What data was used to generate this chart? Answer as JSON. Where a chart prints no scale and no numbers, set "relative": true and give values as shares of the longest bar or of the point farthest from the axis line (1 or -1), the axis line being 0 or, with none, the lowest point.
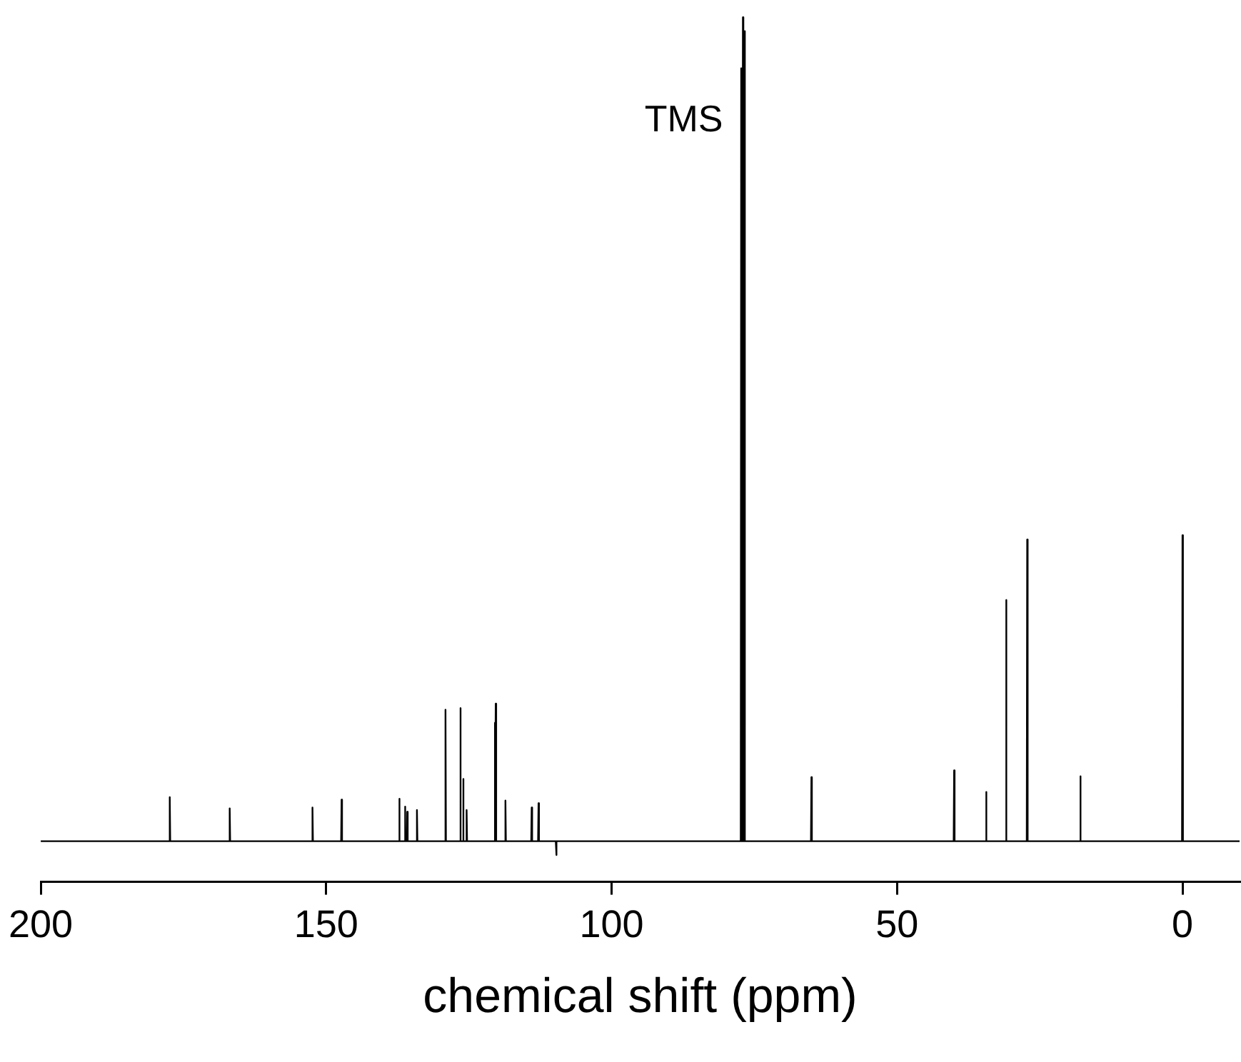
{
  "chart_data": {
    "type": "line",
    "xlabel": "chemical shift (ppm)",
    "relative": true,
    "xlim": [
      200,
      -10
    ],
    "xticks": [
      200,
      150,
      100,
      50,
      0
    ],
    "tick_labels": "x",
    "grid": false,
    "legend": false,
    "marker": "none",
    "line_style": "solid",
    "annotations": [
      {
        "text": "TMS",
        "x": 77.0,
        "y": 0.88
      }
    ],
    "series": [
      {
        "color": "#000000",
        "x": [
          200,
          177.48,
          177.4,
          177.32,
          166.98,
          166.9,
          166.82,
          152.48,
          152.4,
          152.32,
          147.38,
          147.3,
          147.22,
          137.28,
          137.2,
          137.12,
          136.28,
          136.2,
          136.12,
          135.88,
          135.8,
          135.72,
          134.18,
          134.1,
          134.02,
          129.18,
          129.1,
          129.02,
          126.58,
          126.5,
          126.42,
          126.08,
          126.0,
          125.92,
          125.48,
          125.4,
          125.32,
          120.58,
          120.5,
          120.42,
          120.38,
          120.3,
          120.22,
          118.68,
          118.6,
          118.52,
          114.08,
          114.0,
          113.92,
          112.88,
          112.8,
          112.72,
          109.78,
          109.7,
          109.62,
          77.38,
          77.3,
          77.22,
          77.08,
          77.0,
          76.92,
          76.78,
          76.7,
          76.62,
          65.08,
          65.0,
          64.92,
          40.08,
          40.0,
          39.92,
          34.48,
          34.4,
          34.32,
          30.98,
          30.9,
          30.82,
          27.28,
          27.2,
          27.12,
          17.98,
          17.9,
          17.82,
          0.08,
          0.0,
          -0.08,
          -10
        ],
        "values": [
          0.047,
          0.047,
          0.098,
          0.047,
          0.047,
          0.085,
          0.047,
          0.047,
          0.086,
          0.047,
          0.047,
          0.095,
          0.047,
          0.047,
          0.096,
          0.047,
          0.047,
          0.087,
          0.047,
          0.047,
          0.081,
          0.047,
          0.047,
          0.083,
          0.047,
          0.047,
          0.199,
          0.047,
          0.047,
          0.201,
          0.047,
          0.047,
          0.119,
          0.047,
          0.047,
          0.083,
          0.047,
          0.047,
          0.184,
          0.047,
          0.047,
          0.206,
          0.047,
          0.047,
          0.094,
          0.047,
          0.047,
          0.086,
          0.047,
          0.047,
          0.091,
          0.047,
          0.047,
          0.031,
          0.047,
          0.047,
          0.941,
          0.047,
          0.047,
          1.0,
          0.047,
          0.047,
          0.984,
          0.047,
          0.047,
          0.121,
          0.047,
          0.047,
          0.129,
          0.047,
          0.047,
          0.104,
          0.047,
          0.047,
          0.326,
          0.047,
          0.047,
          0.396,
          0.047,
          0.047,
          0.122,
          0.047,
          0.047,
          0.401,
          0.047,
          0.047
        ]
      }
    ]
  }
}
